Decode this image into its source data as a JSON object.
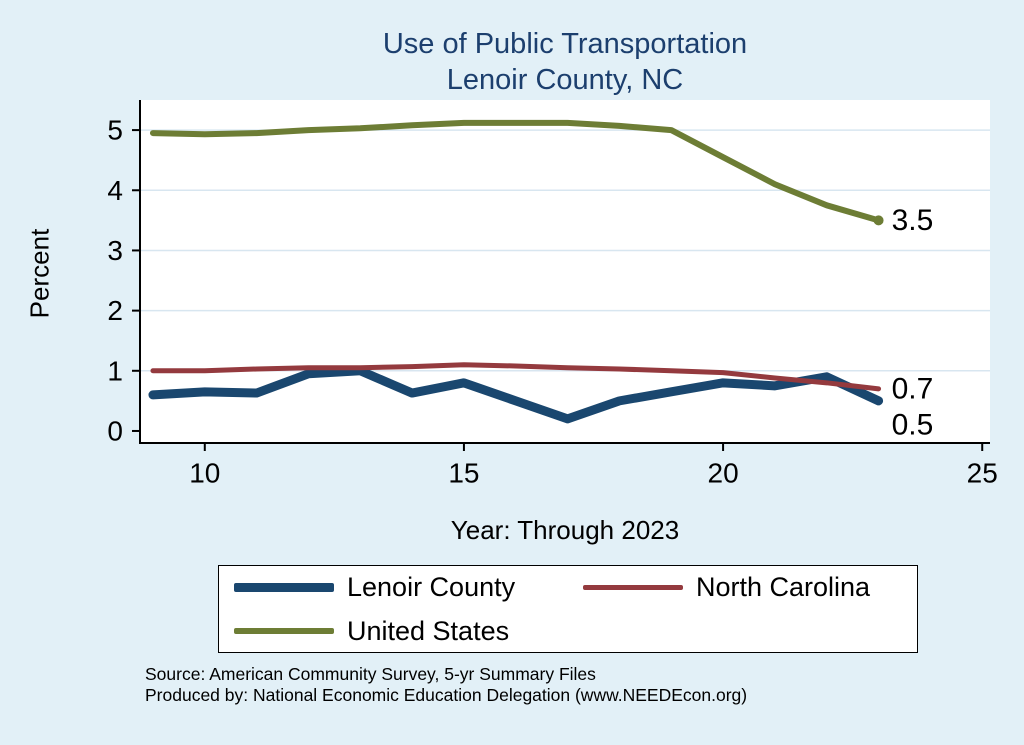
{
  "colors": {
    "background": "#e2f0f7",
    "plot_background": "#ffffff",
    "gridline": "#d8e6f0",
    "axis": "#000000",
    "title_text": "#1c3f6e",
    "label_text": "#000000"
  },
  "chart_data": {
    "type": "line",
    "title_line1": "Use of Public Transportation",
    "title_line2": "Lenoir County, NC",
    "ylabel": "Percent",
    "xlabel": "Year: Through 2023",
    "x": [
      9,
      10,
      11,
      12,
      13,
      14,
      15,
      16,
      17,
      18,
      19,
      20,
      21,
      22,
      23
    ],
    "xticks": [
      10,
      15,
      20,
      25
    ],
    "yticks": [
      0,
      1,
      2,
      3,
      4,
      5
    ],
    "xlim": [
      8.75,
      25.15
    ],
    "ylim": [
      -0.2,
      5.5
    ],
    "grid": "horizontal",
    "legend_position": "bottom",
    "series": [
      {
        "name": "Lenoir County",
        "color": "#1a476f",
        "width": 9,
        "values": [
          0.6,
          0.65,
          0.63,
          0.95,
          1.0,
          0.63,
          0.8,
          0.5,
          0.2,
          0.5,
          0.65,
          0.8,
          0.75,
          0.9,
          0.5
        ],
        "end_label": "0.5",
        "end_label_offset": 24,
        "end_marker": false
      },
      {
        "name": "North Carolina",
        "color": "#943a3e",
        "width": 5,
        "values": [
          1.0,
          1.0,
          1.03,
          1.05,
          1.05,
          1.07,
          1.1,
          1.08,
          1.05,
          1.03,
          1.0,
          0.97,
          0.88,
          0.8,
          0.7
        ],
        "end_label": "0.7",
        "end_label_offset": 0,
        "end_marker": false
      },
      {
        "name": "United States",
        "color": "#6d7d35",
        "width": 6,
        "values": [
          4.95,
          4.93,
          4.95,
          5.0,
          5.03,
          5.08,
          5.12,
          5.12,
          5.12,
          5.07,
          5.0,
          4.55,
          4.1,
          3.75,
          3.5
        ],
        "end_label": "3.5",
        "end_label_offset": 0,
        "end_marker": true
      }
    ]
  },
  "notes": {
    "line1": "Source: American Community Survey, 5-yr Summary Files",
    "line2": "Produced by: National Economic Education Delegation (www.NEEDEcon.org)"
  }
}
